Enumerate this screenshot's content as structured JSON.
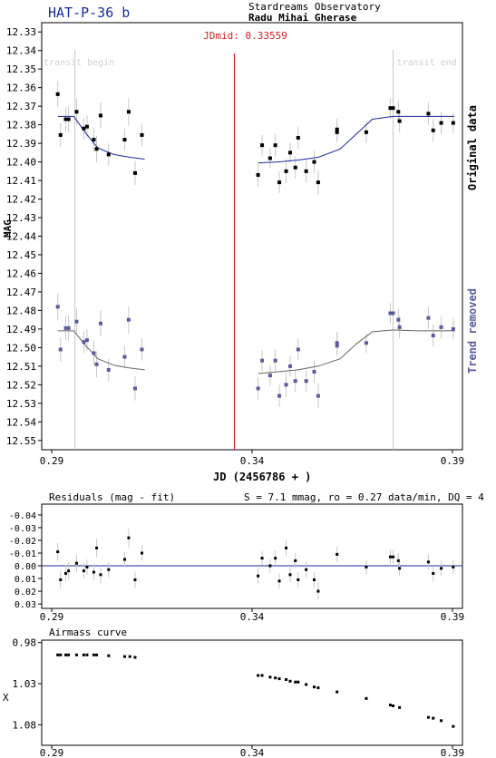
{
  "header": {
    "title": "HAT-P-36 b",
    "observatory": "Stardreams Observatory",
    "observer": "Radu Mihai Gherase"
  },
  "chart_data": [
    {
      "name": "light-curve",
      "type": "scatter",
      "xlabel": "JD (2456786 + )",
      "ylabel": "MAG",
      "xlim": [
        0.2875,
        0.3925
      ],
      "ylim": [
        12.555,
        12.325
      ],
      "y_inverted": true,
      "x_ticks": [
        "0.29",
        "0.34",
        "0.39"
      ],
      "y_ticks": [
        "12.33",
        "12.34",
        "12.35",
        "12.36",
        "12.37",
        "12.38",
        "12.39",
        "12.40",
        "12.41",
        "12.42",
        "12.43",
        "12.44",
        "12.45",
        "12.46",
        "12.47",
        "12.48",
        "12.49",
        "12.50",
        "12.51",
        "12.52",
        "12.53",
        "12.54",
        "12.55"
      ],
      "annotations": {
        "jdmid_label": "JDmid: 0.33559",
        "jdmid": 0.33559,
        "transit_begin_label": "transit begin",
        "transit_begin": 0.2958,
        "transit_end_label": "transit end",
        "transit_end": 0.3752
      },
      "side_labels": {
        "original": "Original data",
        "detrended": "Trend removed"
      },
      "series": [
        {
          "key": "original",
          "color": "#000000",
          "points": [
            [
              0.2915,
              12.3635,
              0.014
            ],
            [
              0.2922,
              12.3855,
              0.013
            ],
            [
              0.2935,
              12.377,
              0.013
            ],
            [
              0.2942,
              12.377,
              0.014
            ],
            [
              0.2962,
              12.373,
              0.014
            ],
            [
              0.298,
              12.382,
              0.012
            ],
            [
              0.2988,
              12.381,
              0.012
            ],
            [
              0.3005,
              12.388,
              0.013
            ],
            [
              0.3012,
              12.393,
              0.014
            ],
            [
              0.3022,
              12.375,
              0.014
            ],
            [
              0.3042,
              12.396,
              0.012
            ],
            [
              0.3082,
              12.388,
              0.012
            ],
            [
              0.3092,
              12.373,
              0.015
            ],
            [
              0.3108,
              12.406,
              0.013
            ],
            [
              0.3125,
              12.3855,
              0.012
            ],
            [
              0.3415,
              12.407,
              0.012
            ],
            [
              0.3425,
              12.391,
              0.011
            ],
            [
              0.3445,
              12.398,
              0.011
            ],
            [
              0.3458,
              12.391,
              0.012
            ],
            [
              0.3468,
              12.411,
              0.012
            ],
            [
              0.3485,
              12.405,
              0.013
            ],
            [
              0.3495,
              12.395,
              0.011
            ],
            [
              0.3508,
              12.403,
              0.012
            ],
            [
              0.3515,
              12.387,
              0.012
            ],
            [
              0.3535,
              12.405,
              0.012
            ],
            [
              0.3555,
              12.4,
              0.012
            ],
            [
              0.3565,
              12.411,
              0.013
            ],
            [
              0.3612,
              12.3825,
              0.012
            ],
            [
              0.3612,
              12.384,
              0.011
            ],
            [
              0.3685,
              12.384,
              0.011
            ],
            [
              0.3745,
              12.371,
              0.011
            ],
            [
              0.3752,
              12.371,
              0.011
            ],
            [
              0.3765,
              12.373,
              0.012
            ],
            [
              0.3768,
              12.378,
              0.012
            ],
            [
              0.384,
              12.374,
              0.012
            ],
            [
              0.3852,
              12.383,
              0.012
            ],
            [
              0.3872,
              12.379,
              0.012
            ],
            [
              0.3902,
              12.379,
              0.011
            ]
          ],
          "model": [
            [
              0.2915,
              12.3755
            ],
            [
              0.2955,
              12.3755
            ],
            [
              0.2985,
              12.3845
            ],
            [
              0.3015,
              12.3925
            ],
            [
              0.3055,
              12.396
            ],
            [
              0.3095,
              12.3975
            ],
            [
              0.3132,
              12.3985
            ],
            [
              0.3415,
              12.4005
            ],
            [
              0.3465,
              12.4
            ],
            [
              0.3515,
              12.399
            ],
            [
              0.3565,
              12.3975
            ],
            [
              0.362,
              12.393
            ],
            [
              0.366,
              12.385
            ],
            [
              0.37,
              12.377
            ],
            [
              0.3752,
              12.3755
            ],
            [
              0.381,
              12.3755
            ],
            [
              0.3905,
              12.3755
            ]
          ]
        },
        {
          "key": "detrended",
          "color": "#5a5aa0",
          "points": [
            [
              0.2915,
              12.478,
              0.014
            ],
            [
              0.2922,
              12.501,
              0.013
            ],
            [
              0.2935,
              12.4895,
              0.013
            ],
            [
              0.2942,
              12.4895,
              0.014
            ],
            [
              0.2962,
              12.486,
              0.014
            ],
            [
              0.298,
              12.497,
              0.012
            ],
            [
              0.2988,
              12.496,
              0.012
            ],
            [
              0.3005,
              12.503,
              0.013
            ],
            [
              0.3012,
              12.509,
              0.014
            ],
            [
              0.3022,
              12.487,
              0.014
            ],
            [
              0.3042,
              12.512,
              0.012
            ],
            [
              0.3082,
              12.505,
              0.012
            ],
            [
              0.3092,
              12.485,
              0.015
            ],
            [
              0.3108,
              12.522,
              0.013
            ],
            [
              0.3125,
              12.501,
              0.012
            ],
            [
              0.3415,
              12.522,
              0.012
            ],
            [
              0.3425,
              12.507,
              0.011
            ],
            [
              0.3445,
              12.515,
              0.011
            ],
            [
              0.3458,
              12.507,
              0.012
            ],
            [
              0.3468,
              12.526,
              0.012
            ],
            [
              0.3485,
              12.52,
              0.013
            ],
            [
              0.3495,
              12.51,
              0.011
            ],
            [
              0.3508,
              12.518,
              0.012
            ],
            [
              0.3515,
              12.501,
              0.012
            ],
            [
              0.3535,
              12.518,
              0.012
            ],
            [
              0.3555,
              12.513,
              0.012
            ],
            [
              0.3565,
              12.526,
              0.013
            ],
            [
              0.3612,
              12.4975,
              0.012
            ],
            [
              0.3612,
              12.499,
              0.011
            ],
            [
              0.3685,
              12.4975,
              0.011
            ],
            [
              0.3745,
              12.4815,
              0.011
            ],
            [
              0.3752,
              12.4815,
              0.011
            ],
            [
              0.3765,
              12.485,
              0.012
            ],
            [
              0.3768,
              12.489,
              0.012
            ],
            [
              0.384,
              12.484,
              0.012
            ],
            [
              0.3852,
              12.4935,
              0.012
            ],
            [
              0.3872,
              12.489,
              0.012
            ],
            [
              0.3902,
              12.49,
              0.011
            ]
          ],
          "model": [
            [
              0.2915,
              12.491
            ],
            [
              0.2955,
              12.491
            ],
            [
              0.2985,
              12.499
            ],
            [
              0.3015,
              12.506
            ],
            [
              0.3055,
              12.5095
            ],
            [
              0.3095,
              12.511
            ],
            [
              0.3132,
              12.512
            ],
            [
              0.3415,
              12.514
            ],
            [
              0.3465,
              12.513
            ],
            [
              0.3515,
              12.512
            ],
            [
              0.3565,
              12.51
            ],
            [
              0.362,
              12.506
            ],
            [
              0.366,
              12.498
            ],
            [
              0.37,
              12.4915
            ],
            [
              0.3752,
              12.4905
            ],
            [
              0.381,
              12.491
            ],
            [
              0.3905,
              12.491
            ]
          ]
        }
      ]
    },
    {
      "name": "residuals",
      "type": "scatter",
      "title": "Residuals (mag - fit)",
      "stats": "S = 7.1 mmag, ro = 0.27 data/min, DQ = 4",
      "xlim": [
        0.2875,
        0.3925
      ],
      "ylim": [
        0.0335,
        -0.0485
      ],
      "x_ticks": [
        "0.29",
        "0.34",
        "0.39"
      ],
      "y_ticks": [
        "-0.04",
        "-0.03",
        "-0.02",
        "-0.01",
        "0.00",
        "0.01",
        "0.02",
        "0.03"
      ],
      "zero_line_color": "#1a2aa0",
      "points": [
        [
          0.2915,
          -0.011,
          0.014
        ],
        [
          0.2922,
          0.011,
          0.013
        ],
        [
          0.2935,
          0.006,
          0.013
        ],
        [
          0.2942,
          0.004,
          0.014
        ],
        [
          0.2962,
          -0.002,
          0.014
        ],
        [
          0.298,
          0.004,
          0.012
        ],
        [
          0.2988,
          0.001,
          0.012
        ],
        [
          0.3005,
          0.005,
          0.013
        ],
        [
          0.3012,
          -0.014,
          0.014
        ],
        [
          0.3022,
          0.007,
          0.014
        ],
        [
          0.3042,
          0.003,
          0.012
        ],
        [
          0.3082,
          -0.005,
          0.012
        ],
        [
          0.3092,
          -0.022,
          0.015
        ],
        [
          0.3108,
          0.011,
          0.013
        ],
        [
          0.3125,
          -0.01,
          0.012
        ],
        [
          0.3415,
          0.008,
          0.012
        ],
        [
          0.3425,
          -0.006,
          0.011
        ],
        [
          0.3445,
          0.0,
          0.011
        ],
        [
          0.3458,
          -0.006,
          0.012
        ],
        [
          0.3468,
          0.012,
          0.012
        ],
        [
          0.3485,
          -0.014,
          0.013
        ],
        [
          0.3495,
          0.007,
          0.011
        ],
        [
          0.3508,
          -0.004,
          0.012
        ],
        [
          0.3515,
          0.011,
          0.012
        ],
        [
          0.3535,
          0.003,
          0.012
        ],
        [
          0.3555,
          0.011,
          0.012
        ],
        [
          0.3565,
          0.02,
          0.013
        ],
        [
          0.3612,
          -0.009,
          0.012
        ],
        [
          0.3685,
          0.001,
          0.011
        ],
        [
          0.3745,
          -0.007,
          0.011
        ],
        [
          0.3752,
          -0.007,
          0.011
        ],
        [
          0.3765,
          -0.004,
          0.012
        ],
        [
          0.3768,
          0.002,
          0.012
        ],
        [
          0.384,
          -0.003,
          0.012
        ],
        [
          0.3852,
          0.006,
          0.012
        ],
        [
          0.3872,
          0.002,
          0.012
        ],
        [
          0.3902,
          0.001,
          0.011
        ]
      ]
    },
    {
      "name": "airmass",
      "type": "scatter",
      "title": "Airmass curve",
      "ylabel": "X",
      "xlim": [
        0.2875,
        0.3925
      ],
      "ylim": [
        0.977,
        1.105
      ],
      "x_ticks": [
        "0.29",
        "0.34",
        "0.39"
      ],
      "y_ticks": [
        "0.98",
        "1.03",
        "1.08"
      ],
      "x": [
        0.2915,
        0.2922,
        0.2935,
        0.2942,
        0.2962,
        0.298,
        0.2988,
        0.3005,
        0.3012,
        0.3042,
        0.3082,
        0.3095,
        0.3108,
        0.3415,
        0.3425,
        0.3445,
        0.3458,
        0.3468,
        0.3485,
        0.3495,
        0.3508,
        0.3515,
        0.3535,
        0.3555,
        0.3565,
        0.3612,
        0.3685,
        0.3745,
        0.3752,
        0.3768,
        0.384,
        0.3852,
        0.3872,
        0.3902
      ],
      "values": [
        0.995,
        0.995,
        0.995,
        0.995,
        0.995,
        0.995,
        0.995,
        0.995,
        0.995,
        0.996,
        0.997,
        0.997,
        0.998,
        1.02,
        1.02,
        1.022,
        1.023,
        1.024,
        1.025,
        1.027,
        1.028,
        1.028,
        1.031,
        1.034,
        1.035,
        1.04,
        1.048,
        1.056,
        1.057,
        1.059,
        1.071,
        1.072,
        1.075,
        1.082
      ]
    }
  ]
}
